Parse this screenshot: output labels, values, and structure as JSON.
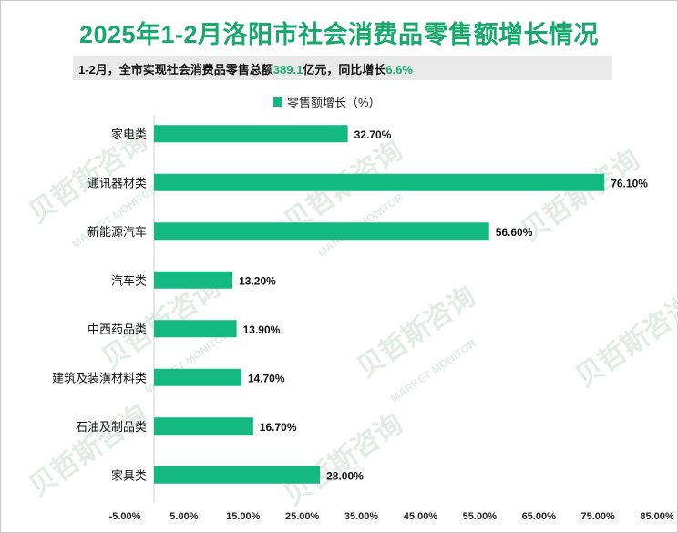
{
  "colors": {
    "title": "#17a86b",
    "bar": "#13b981",
    "highlight": "#17a86b"
  },
  "header": {
    "title": "2025年1-2月洛阳市社会消费品零售额增长情况",
    "subtitle_prefix": "1-2月，全市实现社会消费品零售总额",
    "subtitle_value1": "389.1",
    "subtitle_mid": "亿元，同比增长",
    "subtitle_value2": "6.6%"
  },
  "watermark": {
    "cn": "贝哲斯咨询",
    "en": "MARKET MONITOR"
  },
  "chart_data": {
    "type": "bar",
    "orientation": "horizontal",
    "categories": [
      "家电类",
      "通讯器材类",
      "新能源汽车",
      "汽车类",
      "中西药品类",
      "建筑及装潢材料类",
      "石油及制品类",
      "家具类"
    ],
    "series": [
      {
        "name": "零售额增长（%）",
        "values": [
          32.7,
          76.1,
          56.6,
          13.2,
          13.9,
          14.7,
          16.7,
          28.0
        ]
      }
    ],
    "data_labels": [
      "32.70%",
      "76.10%",
      "56.60%",
      "13.20%",
      "13.90%",
      "14.70%",
      "16.70%",
      "28.00%"
    ],
    "xticks": [
      -5,
      5,
      15,
      25,
      35,
      45,
      55,
      65,
      75,
      85
    ],
    "xtick_labels": [
      "-5.00%",
      "5.00%",
      "15.00%",
      "25.00%",
      "35.00%",
      "45.00%",
      "55.00%",
      "65.00%",
      "75.00%",
      "85.00%"
    ],
    "xlim": [
      -5,
      85
    ],
    "grid": false,
    "legend_position": "top-center"
  }
}
